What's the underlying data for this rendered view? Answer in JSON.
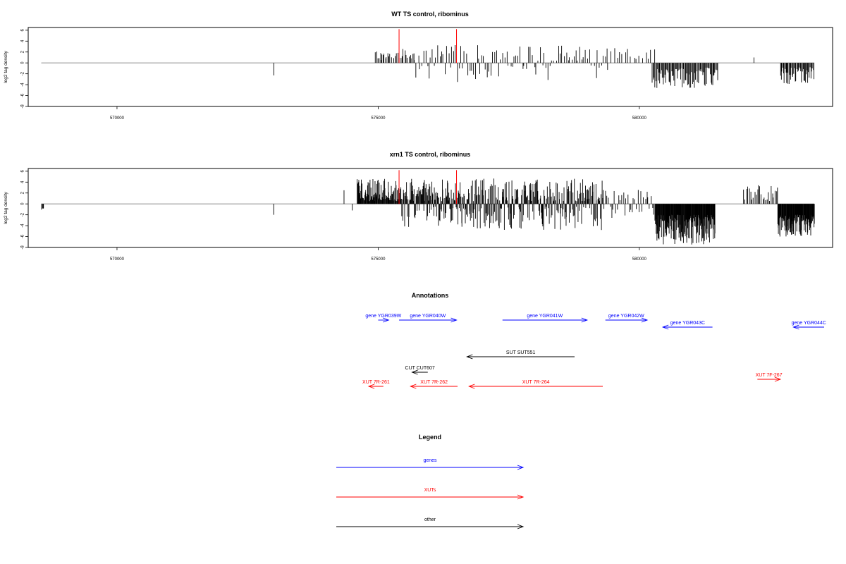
{
  "chart_data": [
    {
      "type": "bar",
      "title": "WT TS control, ribominus",
      "xlabel": "",
      "ylabel": "log2 tag density",
      "xlim": [
        568300,
        583700
      ],
      "ylim": [
        -8,
        6.5
      ],
      "x_ticks": [
        570000,
        575000,
        580000
      ],
      "x_tick_labels": [
        "570000",
        "575000",
        "580000"
      ],
      "y_ticks": [
        6,
        4,
        2,
        0,
        -2,
        -4,
        -6,
        -8
      ],
      "y_tick_labels": [
        "6",
        "4",
        "2",
        "0",
        "-2",
        "-4",
        "-6",
        "-8"
      ],
      "baseline_range": [
        568550,
        583350
      ],
      "highlight_color": "#ff0000",
      "bar_color": "#000000",
      "highlights": [
        {
          "x": 575400,
          "y": 6.2
        },
        {
          "x": 576500,
          "y": 6.2
        }
      ],
      "segments": [
        {
          "x0": 573000,
          "x1": 573010,
          "min": -2.3,
          "max": -2.3,
          "step": 12,
          "pattern": "neg"
        },
        {
          "x0": 574950,
          "x1": 575050,
          "min": 0.5,
          "max": 2.6,
          "step": 25,
          "pattern": "pos"
        },
        {
          "x0": 575050,
          "x1": 575250,
          "min": 0.5,
          "max": 2.0,
          "step": 22,
          "pattern": "pos"
        },
        {
          "x0": 575300,
          "x1": 575700,
          "min": 0.8,
          "max": 2.6,
          "step": 26,
          "pattern": "pos"
        },
        {
          "x0": 575700,
          "x1": 577000,
          "min": 0.5,
          "max": 3.5,
          "step": 34,
          "pattern": "mixed"
        },
        {
          "x0": 577000,
          "x1": 579400,
          "min": 0.4,
          "max": 3.2,
          "step": 38,
          "pattern": "mixed"
        },
        {
          "x0": 579400,
          "x1": 580300,
          "min": 0.4,
          "max": 2.8,
          "step": 55,
          "pattern": "pos"
        },
        {
          "x0": 580250,
          "x1": 581500,
          "min": 0.8,
          "max": 4.6,
          "step": 16,
          "pattern": "neg"
        },
        {
          "x0": 582200,
          "x1": 582220,
          "min": 1.0,
          "max": 1.0,
          "step": 30,
          "pattern": "pos"
        },
        {
          "x0": 582700,
          "x1": 583350,
          "min": 0.8,
          "max": 4.0,
          "step": 15,
          "pattern": "neg"
        }
      ]
    },
    {
      "type": "bar",
      "title": "xrn1 TS control, ribominus",
      "xlabel": "",
      "ylabel": "log2 tag density",
      "xlim": [
        568300,
        583700
      ],
      "ylim": [
        -8,
        6.5
      ],
      "x_ticks": [
        570000,
        575000,
        580000
      ],
      "x_tick_labels": [
        "570000",
        "575000",
        "580000"
      ],
      "y_ticks": [
        6,
        4,
        2,
        0,
        -2,
        -4,
        -6,
        -8
      ],
      "y_tick_labels": [
        "6",
        "4",
        "2",
        "0",
        "-2",
        "-4",
        "-6",
        "-8"
      ],
      "baseline_range": [
        568550,
        583350
      ],
      "highlight_color": "#ff0000",
      "bar_color": "#000000",
      "highlights": [
        {
          "x": 575400,
          "y": 6.2
        },
        {
          "x": 576500,
          "y": 6.2
        }
      ],
      "segments": [
        {
          "x0": 568560,
          "x1": 568600,
          "min": 0.8,
          "max": 1.2,
          "step": 12,
          "pattern": "neg"
        },
        {
          "x0": 573000,
          "x1": 573010,
          "min": -2.0,
          "max": -2.0,
          "step": 12,
          "pattern": "neg"
        },
        {
          "x0": 574350,
          "x1": 574360,
          "min": 2.5,
          "max": 2.5,
          "step": 12,
          "pattern": "pos"
        },
        {
          "x0": 574500,
          "x1": 574510,
          "min": -1.2,
          "max": -1.2,
          "step": 12,
          "pattern": "neg"
        },
        {
          "x0": 574600,
          "x1": 575400,
          "min": 0.5,
          "max": 4.6,
          "step": 9,
          "pattern": "pos"
        },
        {
          "x0": 575400,
          "x1": 576900,
          "min": 0.5,
          "max": 4.6,
          "step": 9,
          "pattern": "mixed"
        },
        {
          "x0": 576900,
          "x1": 579300,
          "min": 0.5,
          "max": 4.8,
          "step": 11,
          "pattern": "mixed"
        },
        {
          "x0": 579300,
          "x1": 580300,
          "min": 0.5,
          "max": 2.6,
          "step": 28,
          "pattern": "mixed"
        },
        {
          "x0": 580300,
          "x1": 581450,
          "min": 2.0,
          "max": 7.5,
          "step": 7,
          "pattern": "neg"
        },
        {
          "x0": 582000,
          "x1": 582650,
          "min": 0.5,
          "max": 3.6,
          "step": 26,
          "pattern": "pos"
        },
        {
          "x0": 582650,
          "x1": 583350,
          "min": 2.0,
          "max": 6.0,
          "step": 7,
          "pattern": "neg"
        }
      ]
    },
    {
      "type": "annotation_track",
      "title": "Annotations",
      "features": [
        {
          "label": "gene YGR039W",
          "x0": 575000,
          "x1": 575200,
          "dir": "right",
          "row": 0,
          "color": "#0000ff"
        },
        {
          "label": "gene YGR040W",
          "x0": 575400,
          "x1": 576500,
          "dir": "right",
          "row": 0,
          "color": "#0000ff"
        },
        {
          "label": "gene YGR041W",
          "x0": 577380,
          "x1": 579000,
          "dir": "right",
          "row": 0,
          "color": "#0000ff"
        },
        {
          "label": "gene YGR042W",
          "x0": 579350,
          "x1": 580150,
          "dir": "right",
          "row": 0,
          "color": "#0000ff"
        },
        {
          "label": "gene YGR043C",
          "x0": 580450,
          "x1": 581400,
          "dir": "left",
          "row": 1,
          "color": "#0000ff"
        },
        {
          "label": "gene YGR044C",
          "x0": 582950,
          "x1": 583850,
          "dir": "left",
          "row": 1,
          "color": "#0000ff"
        },
        {
          "label": "SUT SUT551",
          "x0": 576700,
          "x1": 578760,
          "dir": "left",
          "row": 2,
          "color": "#000000"
        },
        {
          "label": "CUT CUT607",
          "x0": 575650,
          "x1": 575950,
          "dir": "left",
          "row": 3,
          "color": "#000000"
        },
        {
          "label": "XUT 7R-261",
          "x0": 574820,
          "x1": 575100,
          "dir": "left",
          "row": 4,
          "color": "#ff0000"
        },
        {
          "label": "XUT 7R-262",
          "x0": 575620,
          "x1": 576520,
          "dir": "left",
          "row": 4,
          "color": "#ff0000"
        },
        {
          "label": "XUT 7R-264",
          "x0": 576740,
          "x1": 579300,
          "dir": "left",
          "row": 4,
          "color": "#ff0000"
        },
        {
          "label": "XUT 7F-267",
          "x0": 582260,
          "x1": 582700,
          "dir": "right",
          "row": 5,
          "color": "#ff0000"
        }
      ]
    }
  ],
  "legend": {
    "title": "Legend",
    "items": [
      {
        "label": "genes",
        "color": "#0000ff"
      },
      {
        "label": "XUTs",
        "color": "#ff0000"
      },
      {
        "label": "other",
        "color": "#000000"
      }
    ]
  }
}
